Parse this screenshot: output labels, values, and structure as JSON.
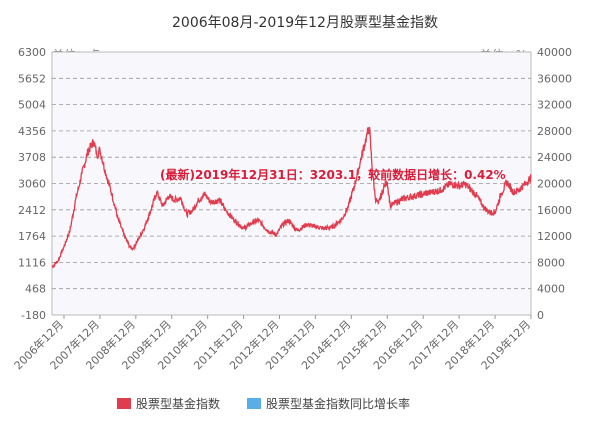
{
  "chart_data": {
    "type": "line",
    "title": "2006年08月-2019年12月股票型基金指数",
    "left_unit": "单位：点",
    "right_unit": "单位：%",
    "left_axis": {
      "min": -180,
      "max": 6300,
      "ticks": [
        -180,
        468,
        1116,
        1764,
        2412,
        3060,
        3708,
        4356,
        5004,
        5652,
        6300
      ]
    },
    "right_axis": {
      "min": 0,
      "max": 40000,
      "ticks": [
        0,
        4000,
        8000,
        12000,
        16000,
        20000,
        24000,
        28000,
        32000,
        36000,
        40000
      ]
    },
    "x_tick_labels": [
      "2006年12月",
      "2007年12月",
      "2008年12月",
      "2009年12月",
      "2010年12月",
      "2011年12月",
      "2012年12月",
      "2013年12月",
      "2014年12月",
      "2015年12月",
      "2016年12月",
      "2017年12月",
      "2018年12月",
      "2019年12月"
    ],
    "annotation": "(最新)2019年12月31日：3203.1，较前数据日增长：0.42%",
    "grid": true,
    "legend_position": "bottom",
    "series": [
      {
        "name": "股票型基金指数",
        "color": "#e03c4e",
        "points": [
          [
            "2006-08",
            1000
          ],
          [
            "2006-10",
            1150
          ],
          [
            "2006-12",
            1500
          ],
          [
            "2007-02",
            1900
          ],
          [
            "2007-04",
            2700
          ],
          [
            "2007-06",
            3300
          ],
          [
            "2007-08",
            3850
          ],
          [
            "2007-10",
            4100
          ],
          [
            "2007-11",
            3750
          ],
          [
            "2007-12",
            3900
          ],
          [
            "2008-02",
            3300
          ],
          [
            "2008-04",
            2800
          ],
          [
            "2008-06",
            2200
          ],
          [
            "2008-08",
            1800
          ],
          [
            "2008-10",
            1500
          ],
          [
            "2008-11",
            1450
          ],
          [
            "2009-01",
            1700
          ],
          [
            "2009-03",
            2000
          ],
          [
            "2009-05",
            2400
          ],
          [
            "2009-07",
            2850
          ],
          [
            "2009-09",
            2500
          ],
          [
            "2009-11",
            2750
          ],
          [
            "2010-01",
            2650
          ],
          [
            "2010-03",
            2700
          ],
          [
            "2010-05",
            2300
          ],
          [
            "2010-07",
            2400
          ],
          [
            "2010-09",
            2650
          ],
          [
            "2010-11",
            2800
          ],
          [
            "2011-01",
            2600
          ],
          [
            "2011-04",
            2650
          ],
          [
            "2011-06",
            2400
          ],
          [
            "2011-09",
            2150
          ],
          [
            "2011-12",
            1950
          ],
          [
            "2012-03",
            2100
          ],
          [
            "2012-05",
            2150
          ],
          [
            "2012-08",
            1900
          ],
          [
            "2012-11",
            1800
          ],
          [
            "2013-01",
            2050
          ],
          [
            "2013-03",
            2150
          ],
          [
            "2013-06",
            1900
          ],
          [
            "2013-09",
            2050
          ],
          [
            "2013-12",
            2000
          ],
          [
            "2014-03",
            1950
          ],
          [
            "2014-06",
            2000
          ],
          [
            "2014-09",
            2200
          ],
          [
            "2014-11",
            2500
          ],
          [
            "2015-01",
            3000
          ],
          [
            "2015-03",
            3600
          ],
          [
            "2015-05",
            4200
          ],
          [
            "2015-06",
            4450
          ],
          [
            "2015-07",
            3400
          ],
          [
            "2015-08",
            2700
          ],
          [
            "2015-09",
            2550
          ],
          [
            "2015-11",
            3000
          ],
          [
            "2015-12",
            3100
          ],
          [
            "2016-01",
            2500
          ],
          [
            "2016-03",
            2600
          ],
          [
            "2016-06",
            2700
          ],
          [
            "2016-09",
            2750
          ],
          [
            "2016-12",
            2800
          ],
          [
            "2017-03",
            2850
          ],
          [
            "2017-06",
            2900
          ],
          [
            "2017-09",
            3050
          ],
          [
            "2017-12",
            3000
          ],
          [
            "2018-02",
            3050
          ],
          [
            "2018-04",
            2900
          ],
          [
            "2018-06",
            2750
          ],
          [
            "2018-08",
            2500
          ],
          [
            "2018-10",
            2350
          ],
          [
            "2018-12",
            2350
          ],
          [
            "2019-02",
            2800
          ],
          [
            "2019-04",
            3100
          ],
          [
            "2019-06",
            2850
          ],
          [
            "2019-08",
            2900
          ],
          [
            "2019-10",
            3050
          ],
          [
            "2019-12",
            3203.1
          ]
        ]
      },
      {
        "name": "股票型基金指数同比增长率",
        "color": "#5aaee8",
        "points": []
      }
    ]
  }
}
